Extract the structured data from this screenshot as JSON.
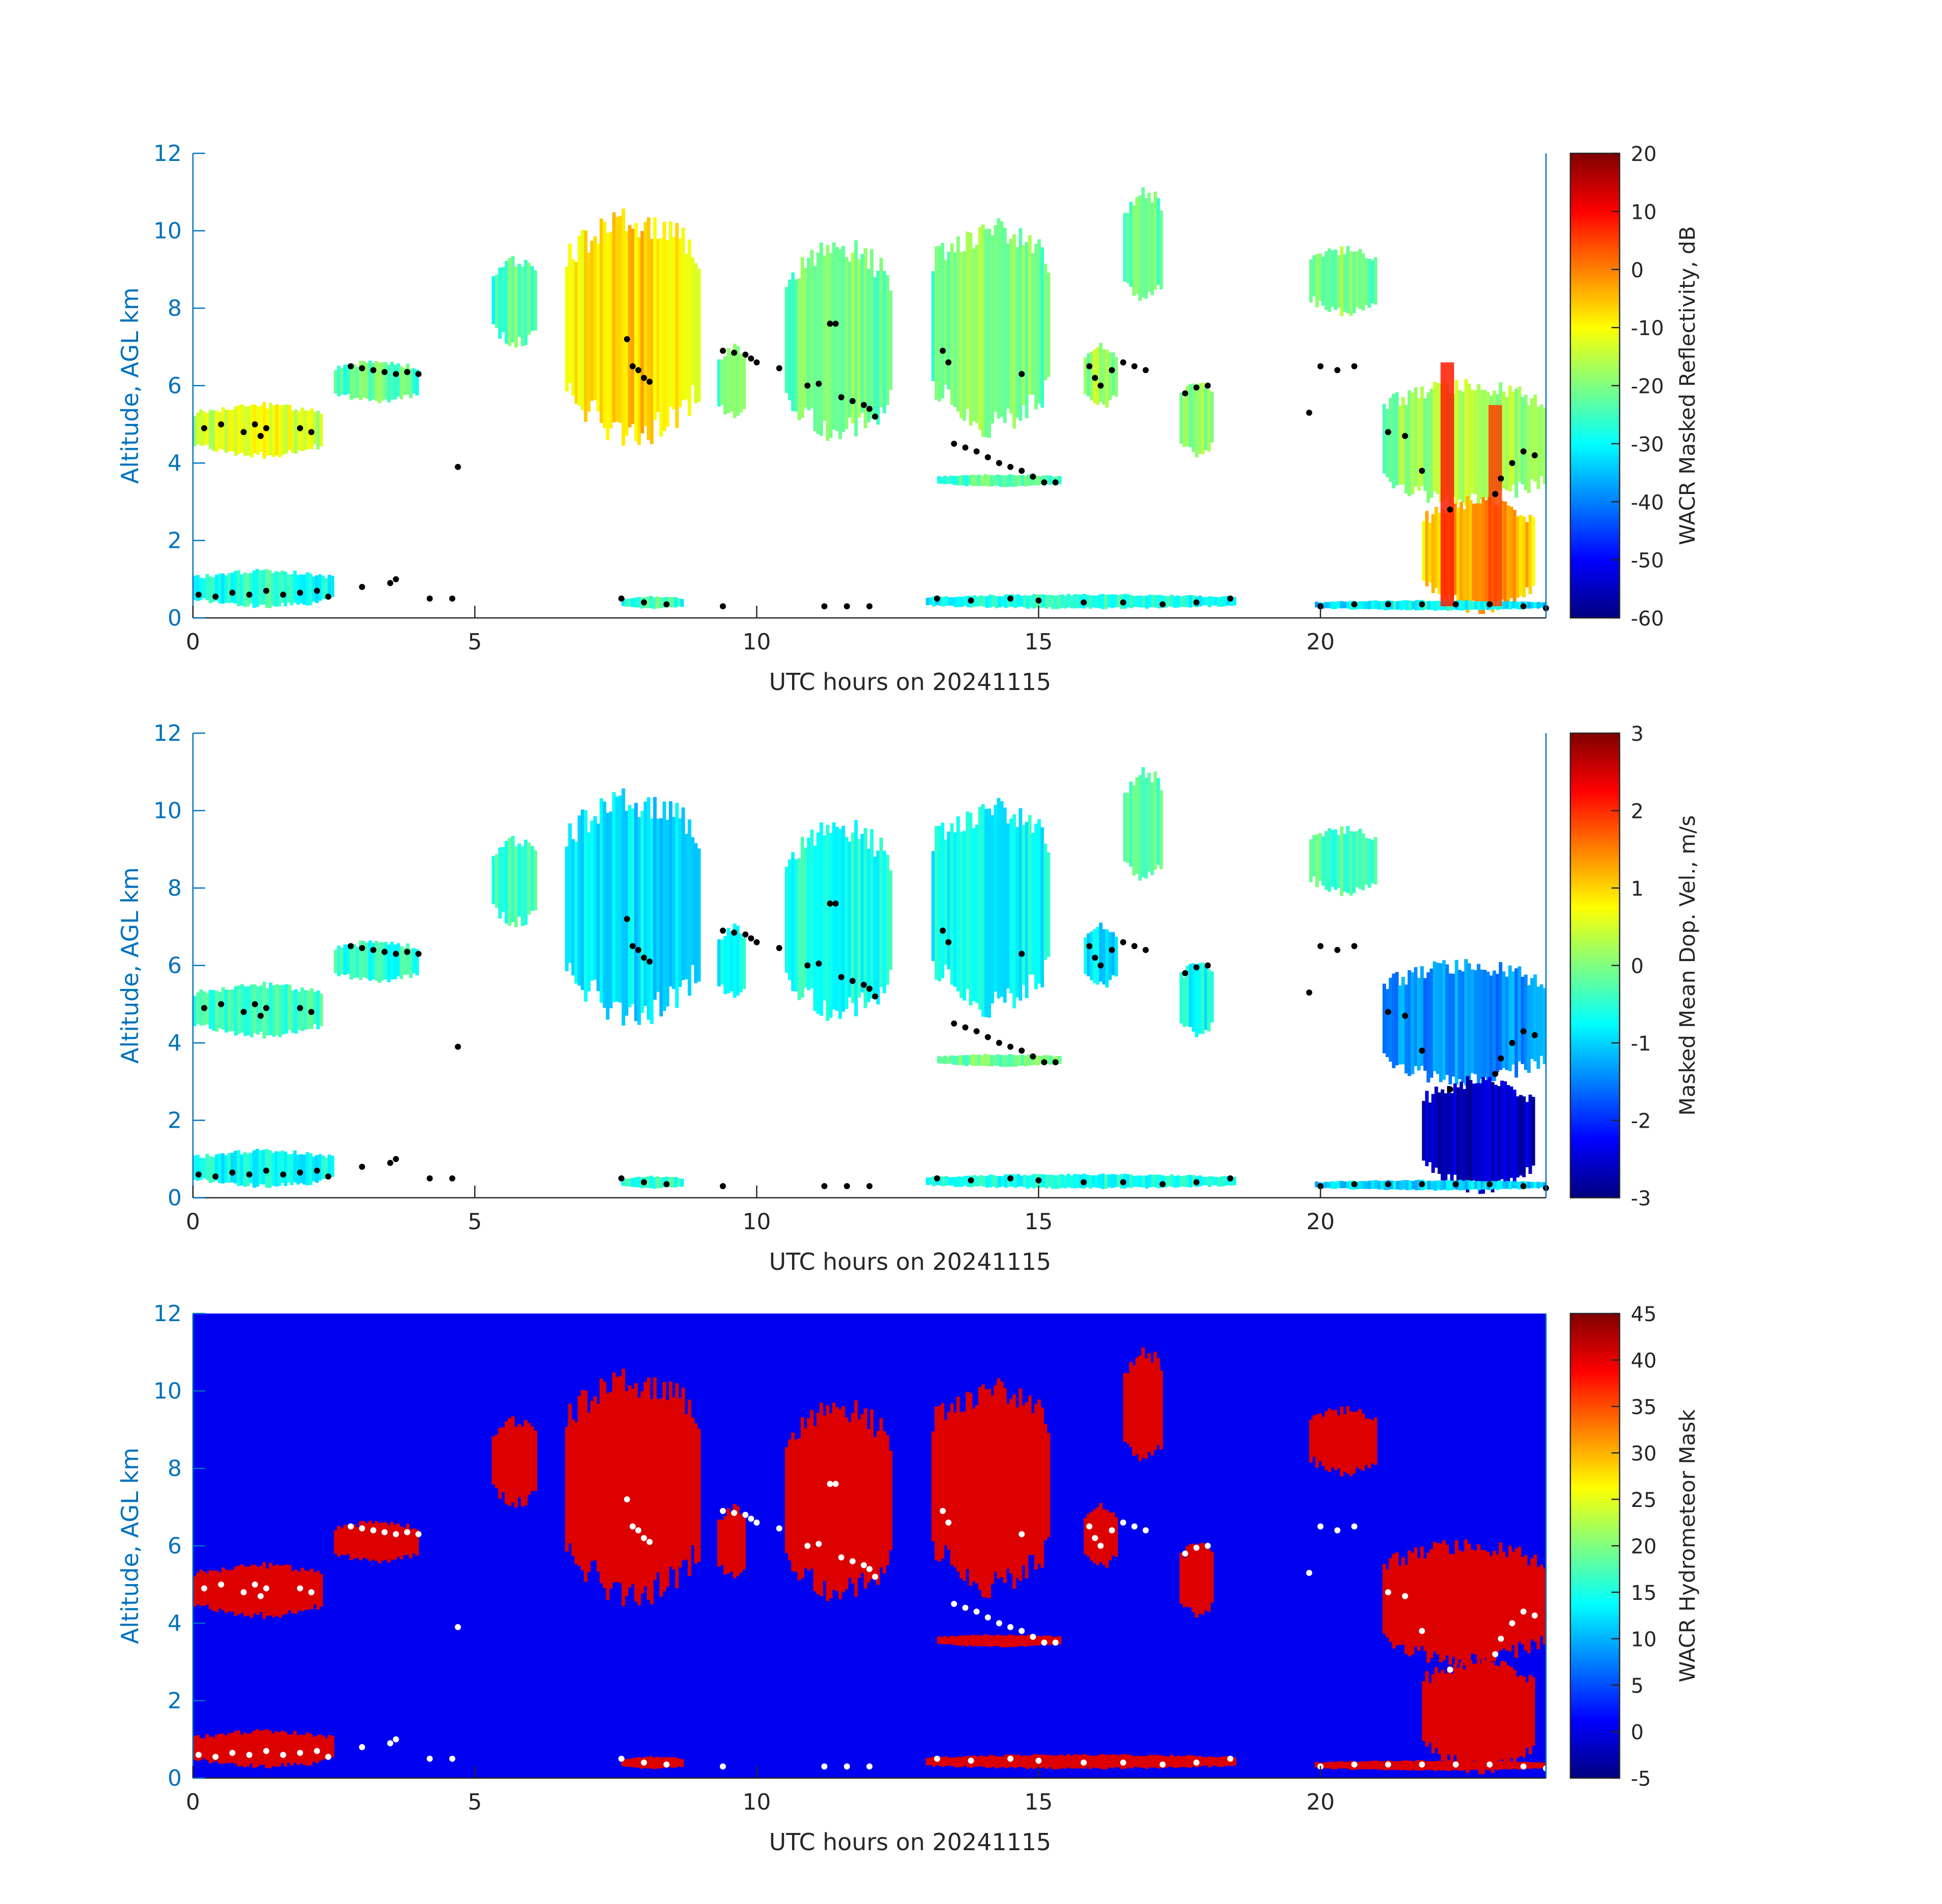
{
  "colors": {
    "axis_blue": "#0072BD",
    "axis_black": "#262626",
    "mask_background": "#0000F0",
    "mask_hydrometeor": "#DC0000",
    "cloud_base_points_dark": "#000000",
    "cloud_base_points_mask": "#FFFFFF"
  },
  "chart_data": [
    {
      "type": "heatmap",
      "title": "",
      "xlabel": "UTC hours on 20241115",
      "ylabel": "Altitude, AGL km",
      "xlim": [
        0,
        24
      ],
      "ylim": [
        0,
        12
      ],
      "xticks": [
        "0",
        "5",
        "10",
        "15",
        "20"
      ],
      "yticks": [
        "0",
        "2",
        "4",
        "6",
        "8",
        "10",
        "12"
      ],
      "colorbar": {
        "label": "WACR Masked Reflectivity, dB",
        "range": [
          -60,
          20
        ],
        "ticks": [
          "-60",
          "-50",
          "-40",
          "-30",
          "-20",
          "-10",
          "0",
          "10",
          "20"
        ],
        "colormap": "jet"
      },
      "background": "white",
      "cloud_base_overlay": "black dots"
    },
    {
      "type": "heatmap",
      "title": "",
      "xlabel": "UTC hours on 20241115",
      "ylabel": "Altitude, AGL km",
      "xlim": [
        0,
        24
      ],
      "ylim": [
        0,
        12
      ],
      "xticks": [
        "0",
        "5",
        "10",
        "15",
        "20"
      ],
      "yticks": [
        "0",
        "2",
        "4",
        "6",
        "8",
        "10",
        "12"
      ],
      "colorbar": {
        "label": "Masked Mean Dop. Vel., m/s",
        "range": [
          -3,
          3
        ],
        "ticks": [
          "-3",
          "-2",
          "-1",
          "0",
          "1",
          "2",
          "3"
        ],
        "colormap": "jet"
      },
      "background": "white",
      "cloud_base_overlay": "black dots"
    },
    {
      "type": "heatmap",
      "title": "",
      "xlabel": "UTC hours on 20241115",
      "ylabel": "Altitude, AGL km",
      "xlim": [
        0,
        24
      ],
      "ylim": [
        0,
        12
      ],
      "xticks": [
        "0",
        "5",
        "10",
        "15",
        "20"
      ],
      "yticks": [
        "0",
        "2",
        "4",
        "6",
        "8",
        "10",
        "12"
      ],
      "colorbar": {
        "label": "WACR Hydrometeor Mask",
        "range": [
          -5,
          45
        ],
        "ticks": [
          "-5",
          "0",
          "5",
          "10",
          "15",
          "20",
          "25",
          "30",
          "35",
          "40",
          "45"
        ],
        "colormap": "jet"
      },
      "background": "blue",
      "cloud_base_overlay": "white dots"
    }
  ],
  "cloud_features": [
    {
      "x0": 0.0,
      "x1": 2.3,
      "y0": 4.2,
      "y1": 5.5,
      "refl": -17,
      "vel": -0.4
    },
    {
      "x0": 2.5,
      "x1": 4.0,
      "y0": 5.6,
      "y1": 6.6,
      "refl": -27,
      "vel": -0.5
    },
    {
      "x0": 5.3,
      "x1": 6.1,
      "y0": 7.1,
      "y1": 9.2,
      "refl": -28,
      "vel": -0.4
    },
    {
      "x0": 6.6,
      "x1": 9.0,
      "y0": 4.8,
      "y1": 10.2,
      "refl": -12,
      "vel": -0.9
    },
    {
      "x0": 9.3,
      "x1": 9.8,
      "y0": 5.2,
      "y1": 7.0,
      "refl": -25,
      "vel": -0.8
    },
    {
      "x0": 10.5,
      "x1": 12.4,
      "y0": 4.8,
      "y1": 9.5,
      "refl": -25,
      "vel": -0.6
    },
    {
      "x0": 13.1,
      "x1": 15.2,
      "y0": 5.0,
      "y1": 10.0,
      "refl": -24,
      "vel": -0.7
    },
    {
      "x0": 15.8,
      "x1": 16.4,
      "y0": 5.5,
      "y1": 7.0,
      "refl": -22,
      "vel": -0.9
    },
    {
      "x0": 16.5,
      "x1": 17.2,
      "y0": 8.2,
      "y1": 11.0,
      "refl": -27,
      "vel": -0.3
    },
    {
      "x0": 17.5,
      "x1": 18.1,
      "y0": 4.2,
      "y1": 6.0,
      "refl": -24,
      "vel": -0.7
    },
    {
      "x0": 19.8,
      "x1": 21.0,
      "y0": 7.9,
      "y1": 9.5,
      "refl": -25,
      "vel": -0.3
    },
    {
      "x0": 21.1,
      "x1": 24.0,
      "y0": 3.0,
      "y1": 6.0,
      "refl": -22,
      "vel": -1.4
    },
    {
      "x0": 21.8,
      "x1": 23.8,
      "y0": 0.3,
      "y1": 3.0,
      "refl": -8,
      "vel": -2.6
    },
    {
      "x0": 0.0,
      "x1": 2.5,
      "y0": 0.3,
      "y1": 1.2,
      "refl": -32,
      "vel": -0.7
    },
    {
      "x0": 13.2,
      "x1": 15.4,
      "y0": 3.4,
      "y1": 3.7,
      "refl": -28,
      "vel": -0.1
    },
    {
      "x0": 7.6,
      "x1": 8.7,
      "y0": 0.25,
      "y1": 0.55,
      "refl": -30,
      "vel": -0.5
    },
    {
      "x0": 13.0,
      "x1": 18.5,
      "y0": 0.25,
      "y1": 0.6,
      "refl": -32,
      "vel": -0.6
    },
    {
      "x0": 19.9,
      "x1": 24.0,
      "y0": 0.2,
      "y1": 0.45,
      "refl": -35,
      "vel": -1.0
    }
  ],
  "rain_shafts": [
    {
      "x": 22.25,
      "y0": 0.3,
      "y1": 6.6,
      "refl": 8
    },
    {
      "x": 23.1,
      "y0": 0.3,
      "y1": 5.5,
      "refl": 5
    }
  ],
  "cloud_base_points": [
    [
      0.2,
      4.9
    ],
    [
      0.5,
      5.0
    ],
    [
      0.9,
      4.8
    ],
    [
      1.1,
      5.0
    ],
    [
      1.3,
      4.9
    ],
    [
      1.2,
      4.7
    ],
    [
      1.9,
      4.9
    ],
    [
      2.1,
      4.8
    ],
    [
      2.8,
      6.5
    ],
    [
      3.0,
      6.45
    ],
    [
      3.2,
      6.4
    ],
    [
      3.4,
      6.35
    ],
    [
      3.6,
      6.3
    ],
    [
      3.8,
      6.35
    ],
    [
      4.0,
      6.3
    ],
    [
      7.7,
      7.2
    ],
    [
      7.8,
      6.5
    ],
    [
      7.9,
      6.4
    ],
    [
      8.0,
      6.2
    ],
    [
      8.1,
      6.1
    ],
    [
      9.4,
      6.9
    ],
    [
      9.6,
      6.85
    ],
    [
      9.8,
      6.8
    ],
    [
      9.9,
      6.7
    ],
    [
      10.0,
      6.6
    ],
    [
      10.4,
      6.45
    ],
    [
      10.9,
      6.0
    ],
    [
      11.1,
      6.05
    ],
    [
      11.3,
      7.6
    ],
    [
      11.4,
      7.6
    ],
    [
      11.5,
      5.7
    ],
    [
      11.7,
      5.6
    ],
    [
      11.9,
      5.5
    ],
    [
      12.0,
      5.4
    ],
    [
      12.1,
      5.2
    ],
    [
      13.3,
      6.9
    ],
    [
      13.4,
      6.6
    ],
    [
      13.5,
      4.5
    ],
    [
      13.7,
      4.4
    ],
    [
      13.9,
      4.3
    ],
    [
      14.1,
      4.15
    ],
    [
      14.3,
      4.0
    ],
    [
      14.5,
      3.9
    ],
    [
      14.7,
      3.8
    ],
    [
      14.9,
      3.65
    ],
    [
      15.1,
      3.5
    ],
    [
      15.3,
      3.5
    ],
    [
      15.9,
      6.5
    ],
    [
      16.0,
      6.2
    ],
    [
      16.1,
      6.0
    ],
    [
      16.3,
      6.4
    ],
    [
      16.5,
      6.6
    ],
    [
      16.7,
      6.5
    ],
    [
      16.9,
      6.4
    ],
    [
      17.6,
      5.8
    ],
    [
      17.8,
      5.95
    ],
    [
      18.0,
      6.0
    ],
    [
      19.8,
      5.3
    ],
    [
      20.0,
      6.5
    ],
    [
      20.3,
      6.4
    ],
    [
      20.6,
      6.5
    ],
    [
      21.2,
      4.8
    ],
    [
      21.5,
      4.7
    ],
    [
      21.8,
      3.8
    ],
    [
      22.3,
      2.8
    ],
    [
      23.1,
      3.2
    ],
    [
      23.2,
      3.6
    ],
    [
      23.4,
      4.0
    ],
    [
      23.6,
      4.3
    ],
    [
      23.8,
      4.2
    ],
    [
      0.1,
      0.6
    ],
    [
      0.4,
      0.55
    ],
    [
      0.7,
      0.65
    ],
    [
      1.0,
      0.6
    ],
    [
      1.3,
      0.7
    ],
    [
      1.6,
      0.6
    ],
    [
      1.9,
      0.65
    ],
    [
      2.2,
      0.7
    ],
    [
      2.4,
      0.55
    ],
    [
      3.0,
      0.8
    ],
    [
      3.5,
      0.9
    ],
    [
      3.6,
      1.0
    ],
    [
      4.2,
      0.5
    ],
    [
      4.6,
      0.5
    ],
    [
      7.6,
      0.5
    ],
    [
      8.0,
      0.4
    ],
    [
      8.4,
      0.35
    ],
    [
      9.4,
      0.3
    ],
    [
      11.2,
      0.3
    ],
    [
      11.6,
      0.3
    ],
    [
      12.0,
      0.3
    ],
    [
      13.2,
      0.5
    ],
    [
      13.8,
      0.45
    ],
    [
      14.5,
      0.5
    ],
    [
      15.0,
      0.45
    ],
    [
      15.8,
      0.4
    ],
    [
      16.5,
      0.4
    ],
    [
      17.2,
      0.35
    ],
    [
      17.8,
      0.4
    ],
    [
      18.4,
      0.5
    ],
    [
      20.0,
      0.3
    ],
    [
      20.6,
      0.35
    ],
    [
      21.2,
      0.35
    ],
    [
      21.8,
      0.35
    ],
    [
      22.4,
      0.35
    ],
    [
      23.0,
      0.35
    ],
    [
      23.6,
      0.3
    ],
    [
      24.0,
      0.25
    ],
    [
      4.7,
      3.9
    ],
    [
      14.7,
      6.3
    ]
  ]
}
